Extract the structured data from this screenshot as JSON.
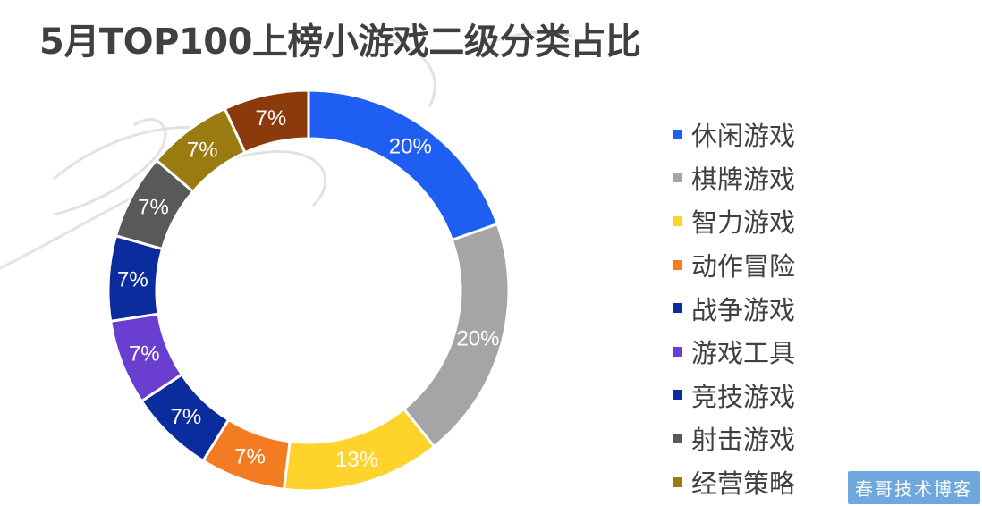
{
  "chart_data": {
    "type": "pie",
    "title": "5月TOP100上榜小游戏二级分类占比",
    "donut": true,
    "legend_position": "right",
    "slices": [
      {
        "label": "休闲游戏",
        "value": 20,
        "display": "20%",
        "color": "#1f5ef2"
      },
      {
        "label": "棋牌游戏",
        "value": 20,
        "display": "20%",
        "color": "#a5a5a5"
      },
      {
        "label": "智力游戏",
        "value": 13,
        "display": "13%",
        "color": "#fdd32c"
      },
      {
        "label": "动作冒险",
        "value": 7,
        "display": "7%",
        "color": "#f37c22"
      },
      {
        "label": "战争游戏",
        "value": 7,
        "display": "7%",
        "color": "#0b2c9c"
      },
      {
        "label": "游戏工具",
        "value": 7,
        "display": "7%",
        "color": "#6a3fd0"
      },
      {
        "label": "竞技游戏",
        "value": 7,
        "display": "7%",
        "color": "#0b2c9c"
      },
      {
        "label": "射击游戏",
        "value": 7,
        "display": "7%",
        "color": "#595959"
      },
      {
        "label": "经营策略",
        "value": 7,
        "display": "7%",
        "color": "#9a7b0f"
      },
      {
        "label": "",
        "value": 7,
        "display": "7%",
        "color": "#8b3a0c"
      }
    ]
  },
  "stamp": {
    "text": "春哥技术博客"
  }
}
